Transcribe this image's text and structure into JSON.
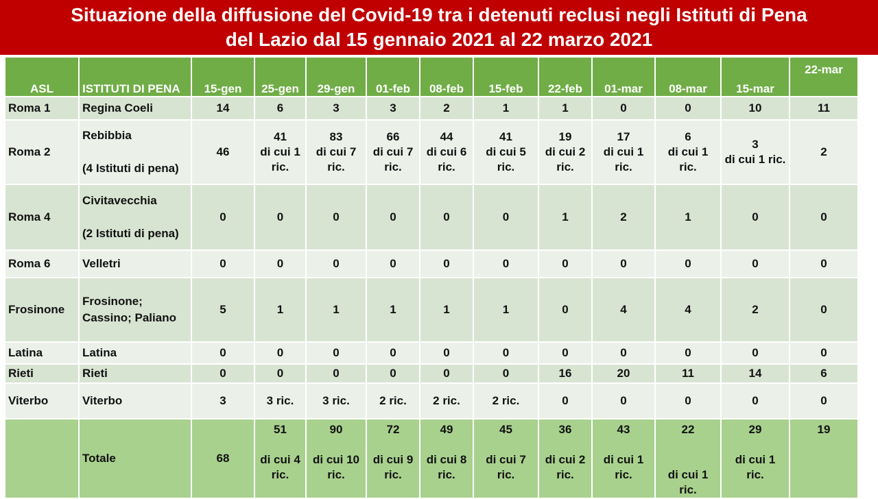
{
  "title": {
    "line1": "Situazione della diffusione del Covid-19 tra i detenuti reclusi negli Istituti di Pena",
    "line2": "del Lazio dal 15 gennaio 2021 al 22 marzo 2021"
  },
  "colors": {
    "title_bg": "#c00000",
    "header_bg": "#70ad47",
    "row_dark": "#d8e4d2",
    "row_light": "#ebf1e9",
    "total_bg": "#a9d18e"
  },
  "table": {
    "headers": {
      "asl": "ASL",
      "istituti": "ISTITUTI DI PENA",
      "dates": [
        "15-gen",
        "25-gen",
        "29-gen",
        "01-feb",
        "08-feb",
        "15-feb",
        "22-feb",
        "01-mar",
        "08-mar",
        "15-mar",
        "22-mar"
      ]
    },
    "rows": [
      {
        "asl": "Roma 1",
        "istituti": [
          "Regina Coeli"
        ],
        "values": [
          "14",
          "6",
          "3",
          "3",
          "2",
          "1",
          "1",
          "0",
          "0",
          "10",
          "11"
        ]
      },
      {
        "asl": "Roma 2",
        "istituti": [
          "Rebibbia",
          "(4 Istituti di pena)"
        ],
        "values": [
          "46",
          "41\ndi cui 1\nric.",
          "83\ndi cui 7\nric.",
          "66\ndi cui 7\nric.",
          "44\ndi cui 6\nric.",
          "41\ndi cui 5\nric.",
          "19\ndi cui 2\nric.",
          "17\ndi cui 1\nric.",
          "6\ndi cui 1 ric.",
          "3\ndi cui 1 ric.",
          "2"
        ]
      },
      {
        "asl": "Roma 4",
        "istituti": [
          "Civitavecchia",
          "(2 Istituti di pena)"
        ],
        "values": [
          "0",
          "0",
          "0",
          "0",
          "0",
          "0",
          "1",
          "2",
          "1",
          "0",
          "0"
        ]
      },
      {
        "asl": "Roma 6",
        "istituti": [
          "Velletri"
        ],
        "values": [
          "0",
          "0",
          "0",
          "0",
          "0",
          "0",
          "0",
          "0",
          "0",
          "0",
          "0"
        ]
      },
      {
        "asl": "Frosinone",
        "istituti": [
          "Frosinone;",
          "Cassino;  Paliano"
        ],
        "values": [
          "5",
          "1",
          "1",
          "1",
          "1",
          "1",
          "0",
          "4",
          "4",
          "2",
          "0"
        ]
      },
      {
        "asl": "Latina",
        "istituti": [
          "Latina"
        ],
        "values": [
          "0",
          "0",
          "0",
          "0",
          "0",
          "0",
          "0",
          "0",
          "0",
          "0",
          "0"
        ]
      },
      {
        "asl": "Rieti",
        "istituti": [
          "Rieti"
        ],
        "values": [
          "0",
          "0",
          "0",
          "0",
          "0",
          "0",
          "16",
          "20",
          "11",
          "14",
          "6"
        ]
      },
      {
        "asl": "Viterbo",
        "istituti": [
          "Viterbo"
        ],
        "values": [
          "3",
          "3 ric.",
          "3 ric.",
          "2 ric.",
          "2 ric.",
          "2 ric.",
          "0",
          "0",
          "0",
          "0",
          "0"
        ]
      }
    ],
    "total": {
      "label": "Totale",
      "values": [
        "68",
        "51\n\ndi cui  4\nric.",
        "90\n\ndi cui 10\nric.",
        "72\n\ndi cui 9\nric.",
        "49\n\ndi cui 8\nric.",
        "45\n\ndi cui 7\nric.",
        "36\n\ndi cui 2\nric.",
        "43\n\ndi cui 1\nric.",
        "22\n\n\ndi cui 1 ric.",
        "29\n\ndi cui 1\nric.",
        "19"
      ]
    }
  }
}
